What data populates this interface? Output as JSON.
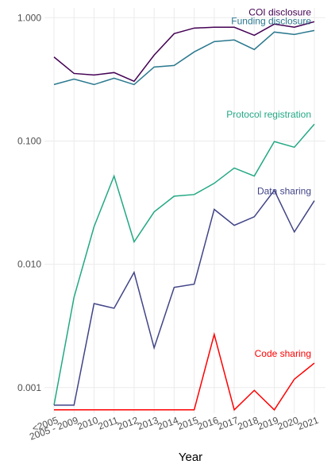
{
  "chart_data": {
    "type": "line",
    "log_y": true,
    "grid": true,
    "x_label": "Year",
    "categories": [
      "<2005",
      "2005 - 2009",
      "2010",
      "2011",
      "2012",
      "2013",
      "2014",
      "2015",
      "2016",
      "2017",
      "2018",
      "2019",
      "2020",
      "2021"
    ],
    "ylim": [
      0.00062,
      1.2
    ],
    "yticks": [
      {
        "value": 0.001,
        "label": "0.001"
      },
      {
        "value": 0.01,
        "label": "0.010"
      },
      {
        "value": 0.1,
        "label": "0.100"
      },
      {
        "value": 1,
        "label": "1.000"
      }
    ],
    "series": [
      {
        "name": "COI disclosure",
        "color": "#440154",
        "values": [
          0.48,
          0.353,
          0.343,
          0.359,
          0.305,
          0.497,
          0.743,
          0.824,
          0.837,
          0.837,
          0.72,
          0.888,
          0.837,
          0.928
        ]
      },
      {
        "name": "Funding disclosure",
        "color": "#2a788e",
        "values": [
          0.287,
          0.318,
          0.287,
          0.323,
          0.287,
          0.398,
          0.41,
          0.528,
          0.64,
          0.66,
          0.552,
          0.765,
          0.732,
          0.788
        ]
      },
      {
        "name": "Protocol registration",
        "color": "#22a884",
        "values": [
          0.00072,
          0.0054,
          0.0202,
          0.052,
          0.0152,
          0.0266,
          0.0357,
          0.0368,
          0.0454,
          0.0604,
          0.052,
          0.099,
          0.089,
          0.137
        ]
      },
      {
        "name": "Data sharing",
        "color": "#414487",
        "values": [
          0.00072,
          0.00072,
          0.0048,
          0.0044,
          0.0086,
          0.0021,
          0.0065,
          0.0069,
          0.0279,
          0.0207,
          0.0243,
          0.0398,
          0.0183,
          0.0328
        ]
      },
      {
        "name": "Code sharing",
        "color": "#ff0000",
        "values": [
          0.00066,
          0.00066,
          0.00066,
          0.00066,
          0.00066,
          0.00066,
          0.00066,
          0.00066,
          0.0027,
          0.00066,
          0.00095,
          0.00066,
          0.00117,
          0.00158
        ]
      }
    ]
  }
}
